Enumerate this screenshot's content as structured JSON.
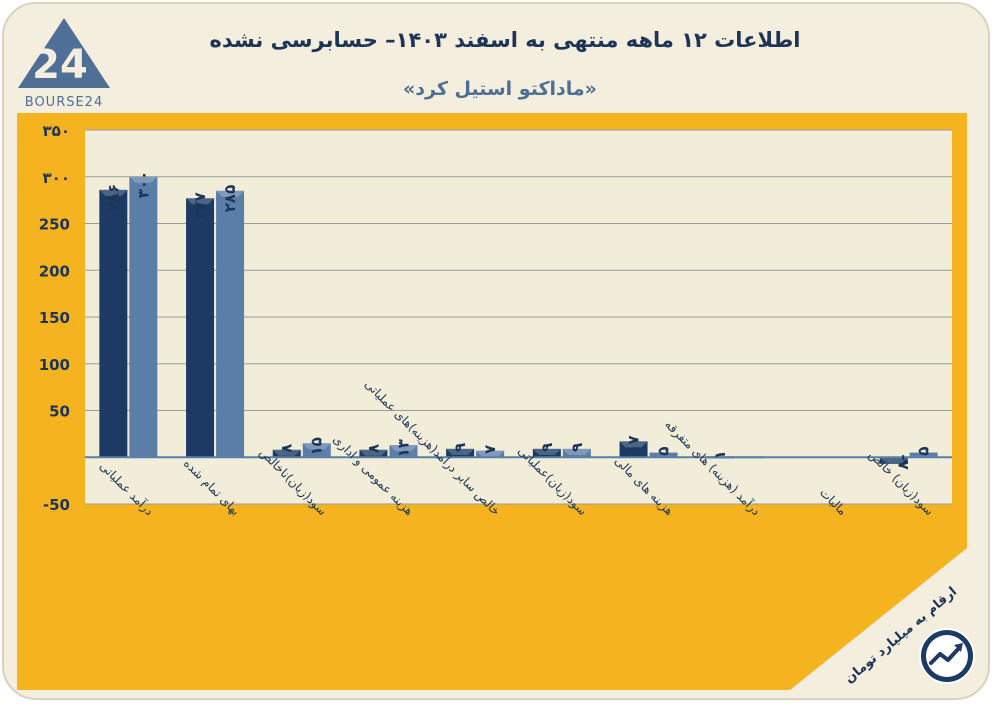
{
  "header": {
    "title": "اطلاعات ۱۲ ماهه منتهی به اسفند ۱۴۰۳– حسابرسی نشده",
    "subtitle": "«ماداکتو استیل کرد»",
    "logo_text": "BOURSE24",
    "logo_mark": "24"
  },
  "footer": {
    "unit_note": "ارقام به میلیارد تومان"
  },
  "colors": {
    "frame": "#f5b320",
    "plot_bg": "#f1edd9",
    "dark_bar": "#1c3a63",
    "light_bar": "#5b7ea8",
    "text": "#1d3557"
  },
  "chart_data": {
    "type": "bar",
    "categories": [
      "درآمد عملیاتی",
      "بهای تمام شده",
      "سود(زیان)ناخالص",
      "هزینه عمومی و اداری",
      "خالص سایر درآمد(هزینه)های عملیاتی",
      "سود(زیان)عملیاتی",
      "هزینه های مالی",
      "درآمد (هزینه) های متفرقه",
      "مالیات",
      "سود(زیان) خالص"
    ],
    "series": [
      {
        "values": [
          286,
          277,
          8,
          8,
          9,
          9,
          17,
          1,
          0,
          -7
        ]
      },
      {
        "values": [
          300,
          285,
          15,
          13,
          7,
          9,
          5,
          1,
          0,
          5
        ]
      }
    ],
    "value_labels": [
      [
        "۲۸۶",
        "۲۷۷",
        "۸",
        "۸",
        "۹",
        "۹",
        "۱۷",
        "۱",
        "",
        "-۷"
      ],
      [
        "۳۰۰",
        "۲۸۵",
        "۱۵",
        "۱۳",
        "۷",
        "۹",
        "۵",
        "",
        "",
        "۵"
      ]
    ],
    "y_ticks": [
      {
        "value": 350,
        "label": "۳۵۰"
      },
      {
        "value": 300,
        "label": "۳۰۰"
      },
      {
        "value": 250,
        "label": "250"
      },
      {
        "value": 200,
        "label": "200"
      },
      {
        "value": 150,
        "label": "150"
      },
      {
        "value": 100,
        "label": "100"
      },
      {
        "value": 50,
        "label": "50"
      },
      {
        "value": -50,
        "label": "-50"
      }
    ],
    "ylim": [
      -50,
      350
    ],
    "grid": true
  }
}
